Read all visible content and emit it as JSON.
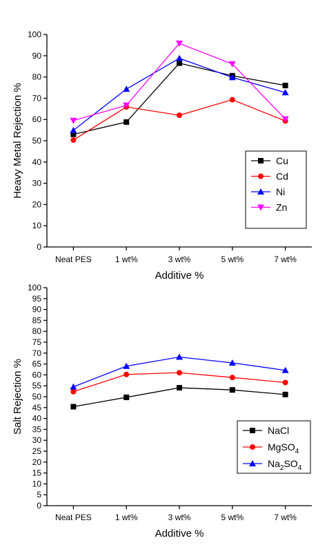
{
  "chart_data": [
    {
      "type": "line",
      "title": "",
      "xlabel": "Additive %",
      "ylabel": "Heavy Metal Rejection %",
      "categories": [
        "Neat PES",
        "1 wt%",
        "3 wt%",
        "5 wt%",
        "7 wt%"
      ],
      "ylim": [
        0,
        100
      ],
      "yticks": [
        0,
        10,
        20,
        30,
        40,
        50,
        60,
        70,
        80,
        90,
        100
      ],
      "grid": false,
      "legend_position": "bottom-right",
      "series": [
        {
          "name": "Cu",
          "marker": "square",
          "color": "#000000",
          "values": [
            53,
            58.8,
            86.5,
            80.6,
            76
          ]
        },
        {
          "name": "Cd",
          "marker": "circle",
          "color": "#ff0000",
          "values": [
            50.3,
            65.9,
            62,
            69.3,
            59.3
          ]
        },
        {
          "name": "Ni",
          "marker": "triangle-up",
          "color": "#0000ff",
          "values": [
            54.9,
            74.3,
            88.8,
            79.8,
            72.7
          ]
        },
        {
          "name": "Zn",
          "marker": "triangle-down",
          "color": "#ff00ff",
          "values": [
            59.5,
            66.7,
            95.8,
            86.1,
            60.2
          ]
        }
      ]
    },
    {
      "type": "line",
      "title": "",
      "xlabel": "Additive %",
      "ylabel": "Salt Rejection %",
      "categories": [
        "Neat PES",
        "1 wt%",
        "3 wt%",
        "5 wt%",
        "7 wt%"
      ],
      "ylim": [
        0,
        100
      ],
      "yticks": [
        0,
        5,
        10,
        15,
        20,
        25,
        30,
        35,
        40,
        45,
        50,
        55,
        60,
        65,
        70,
        75,
        80,
        85,
        90,
        95,
        100
      ],
      "grid": false,
      "legend_position": "bottom-right",
      "series": [
        {
          "name": "NaCl",
          "name_sub": "",
          "marker": "square",
          "color": "#000000",
          "values": [
            45.4,
            49.7,
            54.1,
            53.1,
            51
          ]
        },
        {
          "name": "MgSO",
          "name_sub": "4",
          "marker": "circle",
          "color": "#ff0000",
          "values": [
            52.3,
            60.2,
            61,
            58.8,
            56.5
          ]
        },
        {
          "name": "Na",
          "name_sub": "2",
          "name_tail": "SO",
          "name_sub2": "4",
          "marker": "triangle-up",
          "color": "#0000ff",
          "values": [
            54.5,
            64,
            68.2,
            65.5,
            62.1
          ]
        }
      ]
    }
  ]
}
